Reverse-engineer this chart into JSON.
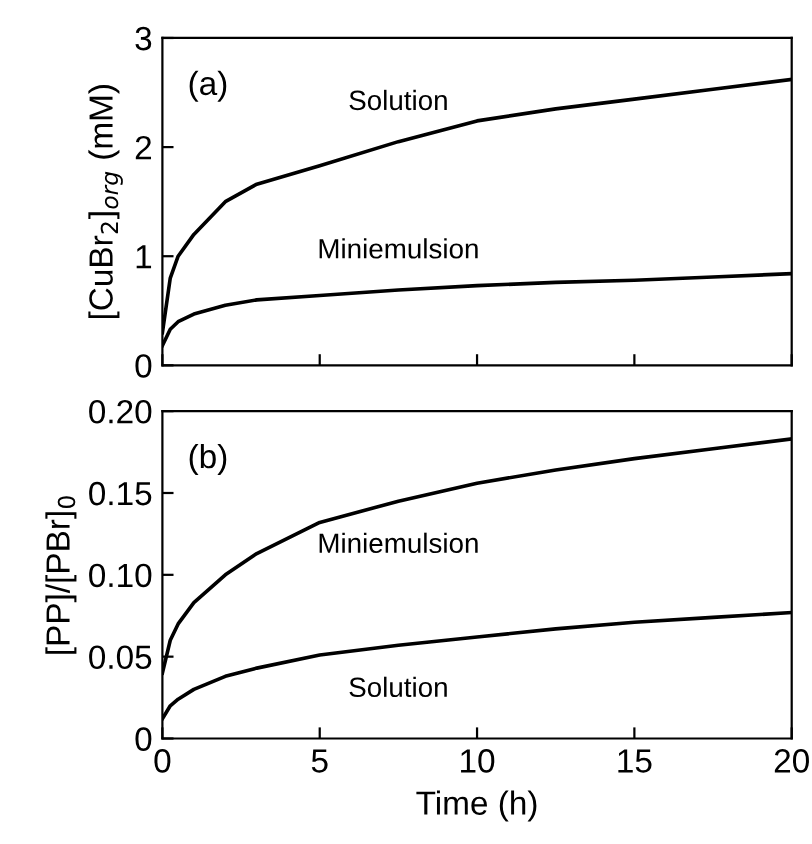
{
  "chart_data": [
    {
      "type": "line",
      "ylabel": "[CuBr$_{2}$]$_{org}$ (mM)",
      "annotations": [
        "(a)"
      ],
      "xlim": [
        0,
        20
      ],
      "xticks": [
        0,
        5,
        10,
        15,
        20
      ],
      "ylim": [
        0,
        3
      ],
      "yticks": [
        0,
        1,
        2,
        3
      ],
      "tick_labels": "y",
      "grid": false,
      "legend": false,
      "line_style": "solid",
      "x": [
        0,
        0.25,
        0.5,
        1,
        2,
        3,
        5,
        7.5,
        10,
        12.5,
        15,
        17.5,
        20
      ],
      "series": [
        {
          "name": "Solution",
          "color": "#000000",
          "values": [
            0.3,
            0.8,
            1.0,
            1.2,
            1.5,
            1.66,
            1.83,
            2.05,
            2.24,
            2.35,
            2.44,
            2.53,
            2.62
          ]
        },
        {
          "name": "Miniemulsion",
          "color": "#000000",
          "values": [
            0.18,
            0.33,
            0.4,
            0.47,
            0.55,
            0.6,
            0.64,
            0.69,
            0.73,
            0.76,
            0.78,
            0.81,
            0.84
          ]
        }
      ]
    },
    {
      "type": "line",
      "xlabel": "Time (h)",
      "ylabel": "[PP]/[PBr]$_{0}$",
      "annotations": [
        "(b)"
      ],
      "xlim": [
        0,
        20
      ],
      "xticks": [
        0,
        5,
        10,
        15,
        20
      ],
      "ylim": [
        0,
        0.2
      ],
      "yticks": [
        {
          "value": 0,
          "label": "0"
        },
        {
          "value": 0.05,
          "label": "0.05"
        },
        {
          "value": 0.1,
          "label": "0.10"
        },
        {
          "value": 0.15,
          "label": "0.15"
        },
        {
          "value": 0.2,
          "label": "0.20"
        }
      ],
      "grid": false,
      "legend": false,
      "line_style": "solid",
      "x": [
        0,
        0.25,
        0.5,
        1,
        2,
        3,
        5,
        7.5,
        10,
        12.5,
        15,
        17.5,
        20
      ],
      "series": [
        {
          "name": "Miniemulsion",
          "color": "#000000",
          "values": [
            0.04,
            0.06,
            0.07,
            0.083,
            0.1,
            0.113,
            0.132,
            0.145,
            0.156,
            0.164,
            0.171,
            0.177,
            0.183
          ]
        },
        {
          "name": "Solution",
          "color": "#000000",
          "values": [
            0.012,
            0.02,
            0.024,
            0.03,
            0.038,
            0.043,
            0.051,
            0.057,
            0.062,
            0.067,
            0.071,
            0.074,
            0.077
          ]
        }
      ]
    }
  ]
}
